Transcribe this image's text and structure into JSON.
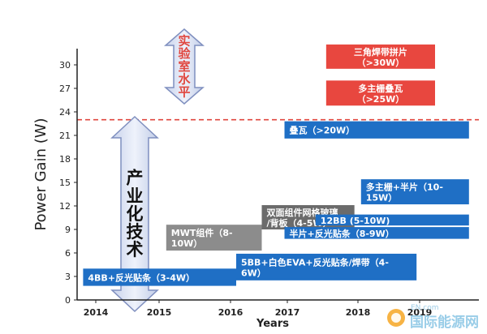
{
  "chart_data": {
    "type": "gantt",
    "ylabel": "Power Gain (W)",
    "xlabel": "Years",
    "y_ticks": [
      "0",
      "3",
      "6",
      "9",
      "12",
      "15",
      "18",
      "21",
      "24",
      "27",
      "30"
    ],
    "x_ticks": [
      "2014",
      "2015",
      "2016",
      "2017",
      "2018",
      "2019"
    ],
    "reference_line": {
      "y": 23,
      "style": "dashed",
      "color": "#e0463e"
    },
    "bars": [
      {
        "label": [
          "4BB+反光贴条（3-4W）"
        ],
        "x_start": 2013.8,
        "x_end": 2016.1,
        "y_low": 1.8,
        "y_high": 4.0,
        "color": "#1f6fc5"
      },
      {
        "label": [
          "5BB+白色EVA+反光贴条/焊带（4-",
          "6W）"
        ],
        "x_start": 2016.1,
        "x_end": 2018.95,
        "y_low": 2.5,
        "y_high": 5.9,
        "color": "#1f6fc5"
      },
      {
        "label": [
          "MWT组件（8-",
          "10W）"
        ],
        "x_start": 2015.1,
        "x_end": 2016.55,
        "y_low": 6.3,
        "y_high": 9.6,
        "color": "#8c8c8c"
      },
      {
        "label": [
          "双面组件网格玻璃",
          "/背板（4-5W）"
        ],
        "x_start": 2016.55,
        "x_end": 2017.95,
        "y_low": 9.0,
        "y_high": 12.1,
        "color": "#6b6b6b"
      },
      {
        "label": [
          "12BB (5-10W)"
        ],
        "x_start": 2017.4,
        "x_end": 2019.8,
        "y_low": 9.5,
        "y_high": 10.9,
        "color": "#1f6fc5"
      },
      {
        "label": [
          "半片+反光贴条（8-9W）"
        ],
        "x_start": 2016.95,
        "x_end": 2019.8,
        "y_low": 7.8,
        "y_high": 9.3,
        "color": "#1f6fc5"
      },
      {
        "label": [
          "多主栅+半片（10-",
          "15W）"
        ],
        "x_start": 2018.05,
        "x_end": 2019.8,
        "y_low": 12.2,
        "y_high": 15.4,
        "color": "#1f6fc5"
      },
      {
        "label": [
          "叠瓦（>20W）"
        ],
        "x_start": 2016.95,
        "x_end": 2019.8,
        "y_low": 20.6,
        "y_high": 22.8,
        "color": "#1f6fc5"
      },
      {
        "label": [
          "多主栅叠瓦",
          "（>25W）"
        ],
        "x_start": 2017.55,
        "x_end": 2019.25,
        "y_low": 24.8,
        "y_high": 28.0,
        "color": "#e8473f"
      },
      {
        "label": [
          "三角焊带拼片",
          "（>30W）"
        ],
        "x_start": 2017.55,
        "x_end": 2019.25,
        "y_low": 29.5,
        "y_high": 32.6,
        "color": "#e8473f"
      }
    ],
    "arrows": [
      {
        "text": [
          "实",
          "验",
          "室",
          "水",
          "平"
        ],
        "text_color": "#e0463e",
        "direction": "both"
      },
      {
        "text": [
          "产",
          "业",
          "化",
          "技",
          "术"
        ],
        "text_color": "#111111",
        "direction": "both"
      }
    ]
  },
  "watermark": {
    "text": "国际能源网",
    "url_fragment": "EN.com"
  }
}
